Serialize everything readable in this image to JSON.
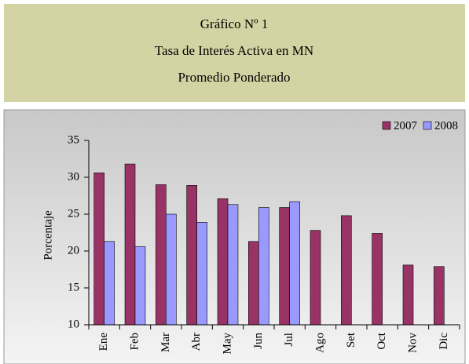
{
  "header": {
    "lines": [
      "Gráfico Nº 1",
      "Tasa de Interés Activa en MN",
      "Promedio Ponderado"
    ]
  },
  "chart_data": {
    "type": "bar",
    "y_label": "Porcentaje",
    "categories": [
      "Ene",
      "Feb",
      "Mar",
      "Abr",
      "May",
      "Jun",
      "Jul",
      "Ago",
      "Set",
      "Oct",
      "Nov",
      "Dic"
    ],
    "series": [
      {
        "name": "2007",
        "color": "#993366",
        "values": [
          30.6,
          31.8,
          29.0,
          28.9,
          27.1,
          21.3,
          25.9,
          22.8,
          24.8,
          22.4,
          18.1,
          17.9
        ]
      },
      {
        "name": "2008",
        "color": "#9999ff",
        "values": [
          21.3,
          20.6,
          25.0,
          23.9,
          26.3,
          25.9,
          26.7,
          null,
          null,
          null,
          null,
          null
        ]
      }
    ],
    "ylim": [
      10,
      35
    ],
    "yticks": [
      10,
      15,
      20,
      25,
      30,
      35
    ],
    "legend": "top-right"
  }
}
